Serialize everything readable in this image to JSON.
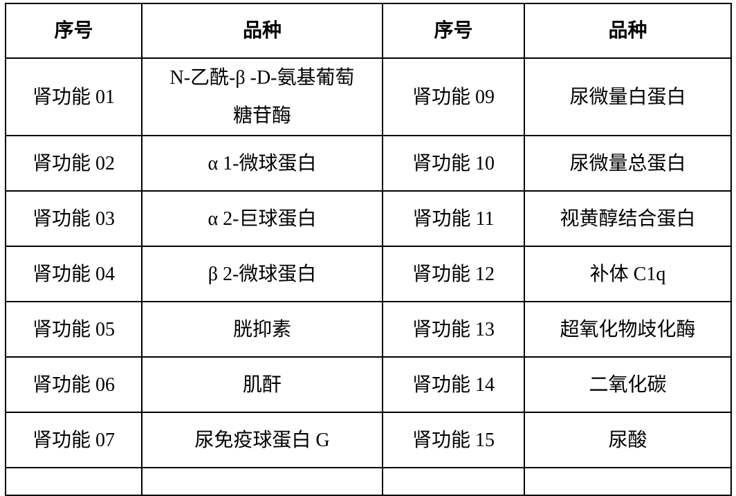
{
  "colors": {
    "background": "#ffffff",
    "border": "#000000",
    "text": "#000000"
  },
  "table": {
    "description": "kidney-function-test-items",
    "headers": [
      "序号",
      "品种",
      "序号",
      "品种"
    ],
    "rows": [
      [
        "肾功能 01",
        "N-乙酰-β -D-氨基葡萄\n糖苷酶",
        "肾功能 09",
        "尿微量白蛋白"
      ],
      [
        "肾功能 02",
        "α 1-微球蛋白",
        "肾功能 10",
        "尿微量总蛋白"
      ],
      [
        "肾功能 03",
        "α 2-巨球蛋白",
        "肾功能 11",
        "视黄醇结合蛋白"
      ],
      [
        "肾功能 04",
        "β 2-微球蛋白",
        "肾功能 12",
        "补体 C1q"
      ],
      [
        "肾功能 05",
        "胱抑素",
        "肾功能 13",
        "超氧化物歧化酶"
      ],
      [
        "肾功能 06",
        "肌酐",
        "肾功能 14",
        "二氧化碳"
      ],
      [
        "肾功能 07",
        "尿免疫球蛋白 G",
        "肾功能 15",
        "尿酸"
      ],
      [
        "",
        "",
        "",
        ""
      ]
    ]
  }
}
